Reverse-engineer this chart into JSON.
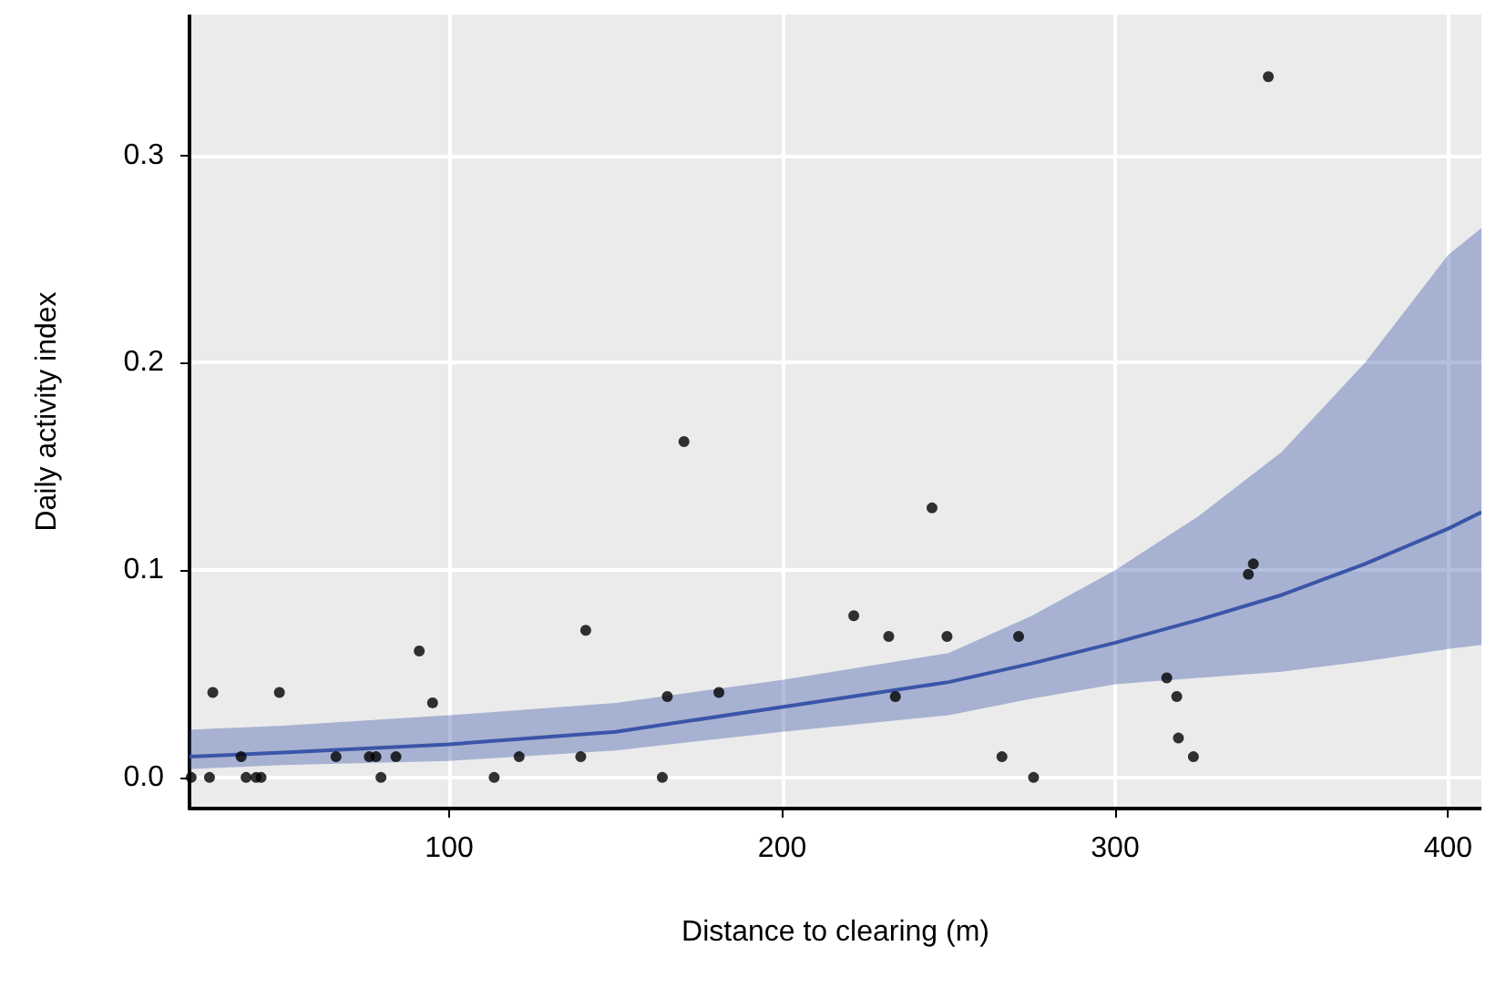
{
  "chart_data": {
    "type": "scatter",
    "xlabel": "Distance to clearing (m)",
    "ylabel": "Daily activity index",
    "xlim": [
      22,
      410
    ],
    "ylim": [
      -0.015,
      0.368
    ],
    "xticks": [
      100,
      200,
      300,
      400
    ],
    "yticks": [
      {
        "value": 0,
        "label": "0.0"
      },
      {
        "value": 0.1,
        "label": "0.1"
      },
      {
        "value": 0.2,
        "label": "0.2"
      },
      {
        "value": 0.3,
        "label": "0.3"
      }
    ],
    "grid": true,
    "series": [
      {
        "color": "#000000",
        "marker": "circle",
        "x": [
          22.5,
          28,
          29,
          37.5,
          39,
          42,
          43.5,
          49,
          66,
          76,
          78,
          79.5,
          84,
          91,
          95,
          113.5,
          121,
          139.5,
          141,
          164,
          165.5,
          170.5,
          181,
          221.5,
          232,
          234,
          245,
          249.5,
          266,
          271,
          275.5,
          315.5,
          318.5,
          319,
          323.5,
          340,
          341.5,
          346
        ],
        "values": [
          0,
          0,
          0.041,
          0.01,
          0,
          0,
          0,
          0.041,
          0.01,
          0.01,
          0.01,
          0,
          0.01,
          0.061,
          0.036,
          0,
          0.01,
          0.01,
          0.071,
          0,
          0.039,
          0.162,
          0.041,
          0.078,
          0.068,
          0.039,
          0.13,
          0.068,
          0.01,
          0.068,
          0,
          0.048,
          0.039,
          0.019,
          0.01,
          0.098,
          0.103,
          0.338
        ]
      },
      {
        "type": "line",
        "color": "#3a55a8",
        "marker": "none",
        "line_style": "solid",
        "x": [
          22,
          50,
          100,
          150,
          200,
          250,
          275,
          300,
          325,
          350,
          375,
          400,
          410
        ],
        "values": [
          0.01,
          0.012,
          0.016,
          0.022,
          0.034,
          0.046,
          0.055,
          0.065,
          0.076,
          0.088,
          0.103,
          0.12,
          0.128
        ],
        "lower": [
          0.004,
          0.006,
          0.008,
          0.013,
          0.022,
          0.03,
          0.038,
          0.045,
          0.048,
          0.051,
          0.056,
          0.062,
          0.064
        ],
        "upper": [
          0.023,
          0.025,
          0.03,
          0.036,
          0.047,
          0.06,
          0.078,
          0.1,
          0.126,
          0.157,
          0.2,
          0.252,
          0.265
        ]
      }
    ]
  }
}
